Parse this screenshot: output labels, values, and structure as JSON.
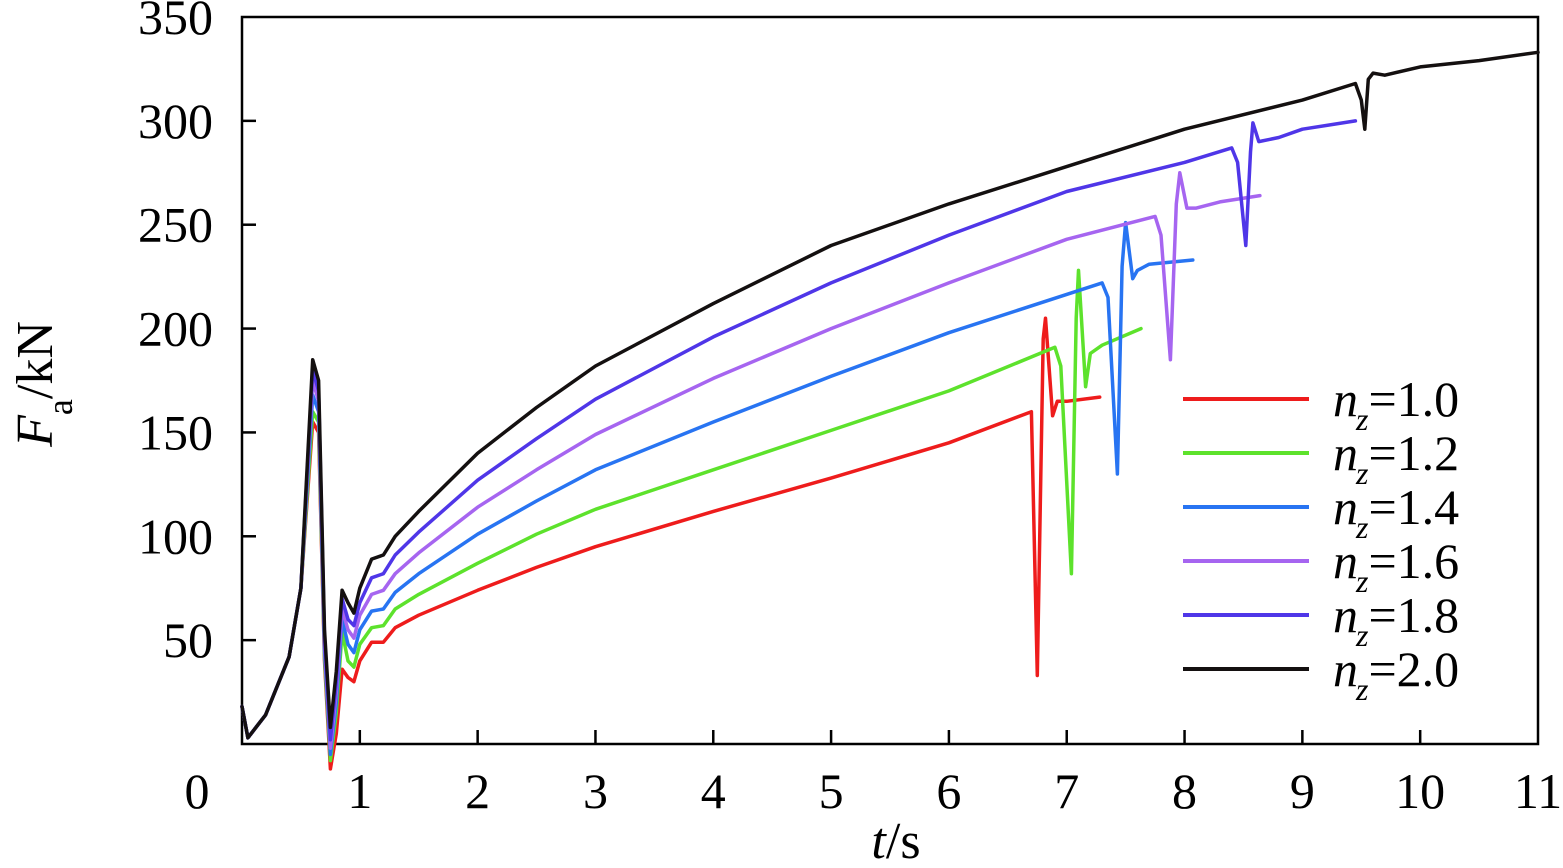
{
  "chart_data": {
    "type": "line",
    "title": "",
    "xlabel": {
      "var": "t",
      "unit": "/s"
    },
    "ylabel": {
      "var": "F",
      "sub": "a",
      "unit": "/kN"
    },
    "xlim": [
      0,
      11
    ],
    "ylim": [
      0,
      350
    ],
    "xticks": [
      0,
      1,
      2,
      3,
      4,
      5,
      6,
      7,
      8,
      9,
      10,
      11
    ],
    "yticks": [
      50,
      100,
      150,
      200,
      250,
      300,
      350
    ],
    "origin_label": "0",
    "grid": false,
    "legend_position": "right",
    "series": [
      {
        "name": "n=1.0",
        "legend_var": "n",
        "legend_sub": "z",
        "legend_value": "=1.0",
        "color": "#ee1c1c",
        "points": [
          [
            0.0,
            18
          ],
          [
            0.05,
            3
          ],
          [
            0.2,
            14
          ],
          [
            0.4,
            42
          ],
          [
            0.5,
            75
          ],
          [
            0.6,
            155
          ],
          [
            0.65,
            150
          ],
          [
            0.7,
            40
          ],
          [
            0.75,
            -12
          ],
          [
            0.8,
            5
          ],
          [
            0.85,
            36
          ],
          [
            0.9,
            32
          ],
          [
            0.95,
            30
          ],
          [
            1.0,
            40
          ],
          [
            1.1,
            49
          ],
          [
            1.2,
            49
          ],
          [
            1.3,
            56
          ],
          [
            1.5,
            62
          ],
          [
            2.0,
            74
          ],
          [
            2.5,
            85
          ],
          [
            3.0,
            95
          ],
          [
            4.0,
            112
          ],
          [
            5.0,
            128
          ],
          [
            6.0,
            145
          ],
          [
            6.7,
            160
          ],
          [
            6.75,
            33
          ],
          [
            6.8,
            195
          ],
          [
            6.82,
            205
          ],
          [
            6.88,
            158
          ],
          [
            6.92,
            165
          ],
          [
            7.0,
            165
          ],
          [
            7.28,
            167
          ]
        ]
      },
      {
        "name": "n=1.2",
        "legend_var": "n",
        "legend_sub": "z",
        "legend_value": "=1.2",
        "color": "#5de22c",
        "points": [
          [
            0.0,
            18
          ],
          [
            0.05,
            3
          ],
          [
            0.2,
            14
          ],
          [
            0.4,
            42
          ],
          [
            0.5,
            75
          ],
          [
            0.6,
            160
          ],
          [
            0.65,
            155
          ],
          [
            0.7,
            42
          ],
          [
            0.75,
            -8
          ],
          [
            0.8,
            15
          ],
          [
            0.85,
            54
          ],
          [
            0.9,
            40
          ],
          [
            0.95,
            37
          ],
          [
            1.0,
            48
          ],
          [
            1.1,
            56
          ],
          [
            1.2,
            57
          ],
          [
            1.3,
            65
          ],
          [
            1.5,
            72
          ],
          [
            2.0,
            87
          ],
          [
            2.5,
            101
          ],
          [
            3.0,
            113
          ],
          [
            4.0,
            132
          ],
          [
            5.0,
            151
          ],
          [
            6.0,
            170
          ],
          [
            6.9,
            191
          ],
          [
            6.95,
            182
          ],
          [
            7.04,
            82
          ],
          [
            7.08,
            205
          ],
          [
            7.1,
            228
          ],
          [
            7.16,
            172
          ],
          [
            7.2,
            188
          ],
          [
            7.3,
            192
          ],
          [
            7.63,
            200
          ]
        ]
      },
      {
        "name": "n=1.4",
        "legend_var": "n",
        "legend_sub": "z",
        "legend_value": "=1.4",
        "color": "#2874f2",
        "points": [
          [
            0.0,
            18
          ],
          [
            0.05,
            3
          ],
          [
            0.2,
            14
          ],
          [
            0.4,
            42
          ],
          [
            0.5,
            75
          ],
          [
            0.6,
            168
          ],
          [
            0.65,
            160
          ],
          [
            0.7,
            45
          ],
          [
            0.75,
            -5
          ],
          [
            0.8,
            20
          ],
          [
            0.85,
            60
          ],
          [
            0.9,
            48
          ],
          [
            0.95,
            44
          ],
          [
            1.0,
            55
          ],
          [
            1.1,
            64
          ],
          [
            1.2,
            65
          ],
          [
            1.3,
            73
          ],
          [
            1.5,
            82
          ],
          [
            2.0,
            101
          ],
          [
            2.5,
            117
          ],
          [
            3.0,
            132
          ],
          [
            4.0,
            155
          ],
          [
            5.0,
            177
          ],
          [
            6.0,
            198
          ],
          [
            7.3,
            222
          ],
          [
            7.35,
            215
          ],
          [
            7.43,
            130
          ],
          [
            7.47,
            230
          ],
          [
            7.5,
            251
          ],
          [
            7.56,
            224
          ],
          [
            7.6,
            228
          ],
          [
            7.7,
            231
          ],
          [
            8.07,
            233
          ]
        ]
      },
      {
        "name": "n=1.6",
        "legend_var": "n",
        "legend_sub": "z",
        "legend_value": "=1.6",
        "color": "#a665f0",
        "points": [
          [
            0.0,
            18
          ],
          [
            0.05,
            3
          ],
          [
            0.2,
            14
          ],
          [
            0.4,
            42
          ],
          [
            0.5,
            75
          ],
          [
            0.6,
            175
          ],
          [
            0.65,
            165
          ],
          [
            0.7,
            48
          ],
          [
            0.75,
            -2
          ],
          [
            0.8,
            25
          ],
          [
            0.85,
            65
          ],
          [
            0.9,
            55
          ],
          [
            0.95,
            51
          ],
          [
            1.0,
            62
          ],
          [
            1.1,
            72
          ],
          [
            1.2,
            74
          ],
          [
            1.3,
            82
          ],
          [
            1.5,
            92
          ],
          [
            2.0,
            114
          ],
          [
            2.5,
            132
          ],
          [
            3.0,
            149
          ],
          [
            4.0,
            176
          ],
          [
            5.0,
            200
          ],
          [
            6.0,
            222
          ],
          [
            7.0,
            243
          ],
          [
            7.75,
            254
          ],
          [
            7.8,
            245
          ],
          [
            7.88,
            185
          ],
          [
            7.93,
            260
          ],
          [
            7.96,
            275
          ],
          [
            8.02,
            258
          ],
          [
            8.1,
            258
          ],
          [
            8.3,
            261
          ],
          [
            8.64,
            264
          ]
        ]
      },
      {
        "name": "n=1.8",
        "legend_var": "n",
        "legend_sub": "z",
        "legend_value": "=1.8",
        "color": "#4f36e8",
        "points": [
          [
            0.0,
            18
          ],
          [
            0.05,
            3
          ],
          [
            0.2,
            14
          ],
          [
            0.4,
            42
          ],
          [
            0.5,
            75
          ],
          [
            0.6,
            180
          ],
          [
            0.65,
            170
          ],
          [
            0.7,
            52
          ],
          [
            0.75,
            2
          ],
          [
            0.8,
            30
          ],
          [
            0.85,
            70
          ],
          [
            0.9,
            60
          ],
          [
            0.95,
            57
          ],
          [
            1.0,
            68
          ],
          [
            1.1,
            80
          ],
          [
            1.2,
            82
          ],
          [
            1.3,
            91
          ],
          [
            1.5,
            102
          ],
          [
            2.0,
            127
          ],
          [
            2.5,
            147
          ],
          [
            3.0,
            166
          ],
          [
            4.0,
            196
          ],
          [
            5.0,
            222
          ],
          [
            6.0,
            245
          ],
          [
            7.0,
            266
          ],
          [
            8.0,
            280
          ],
          [
            8.4,
            287
          ],
          [
            8.45,
            280
          ],
          [
            8.52,
            240
          ],
          [
            8.56,
            285
          ],
          [
            8.58,
            299
          ],
          [
            8.63,
            290
          ],
          [
            8.8,
            292
          ],
          [
            9.0,
            296
          ],
          [
            9.45,
            300
          ]
        ]
      },
      {
        "name": "n=2.0",
        "legend_var": "n",
        "legend_sub": "z",
        "legend_value": "=2.0",
        "color": "#141010",
        "points": [
          [
            0.0,
            18
          ],
          [
            0.05,
            3
          ],
          [
            0.2,
            14
          ],
          [
            0.4,
            42
          ],
          [
            0.5,
            75
          ],
          [
            0.6,
            185
          ],
          [
            0.65,
            175
          ],
          [
            0.7,
            55
          ],
          [
            0.75,
            8
          ],
          [
            0.8,
            35
          ],
          [
            0.85,
            74
          ],
          [
            0.9,
            68
          ],
          [
            0.95,
            63
          ],
          [
            1.0,
            75
          ],
          [
            1.1,
            89
          ],
          [
            1.2,
            91
          ],
          [
            1.3,
            100
          ],
          [
            1.5,
            112
          ],
          [
            2.0,
            140
          ],
          [
            2.5,
            162
          ],
          [
            3.0,
            182
          ],
          [
            4.0,
            212
          ],
          [
            5.0,
            240
          ],
          [
            6.0,
            260
          ],
          [
            7.0,
            278
          ],
          [
            8.0,
            296
          ],
          [
            9.0,
            310
          ],
          [
            9.45,
            318
          ],
          [
            9.5,
            310
          ],
          [
            9.53,
            296
          ],
          [
            9.56,
            320
          ],
          [
            9.6,
            323
          ],
          [
            9.7,
            322
          ],
          [
            10.0,
            326
          ],
          [
            10.5,
            329
          ],
          [
            11.0,
            333
          ]
        ]
      }
    ]
  }
}
